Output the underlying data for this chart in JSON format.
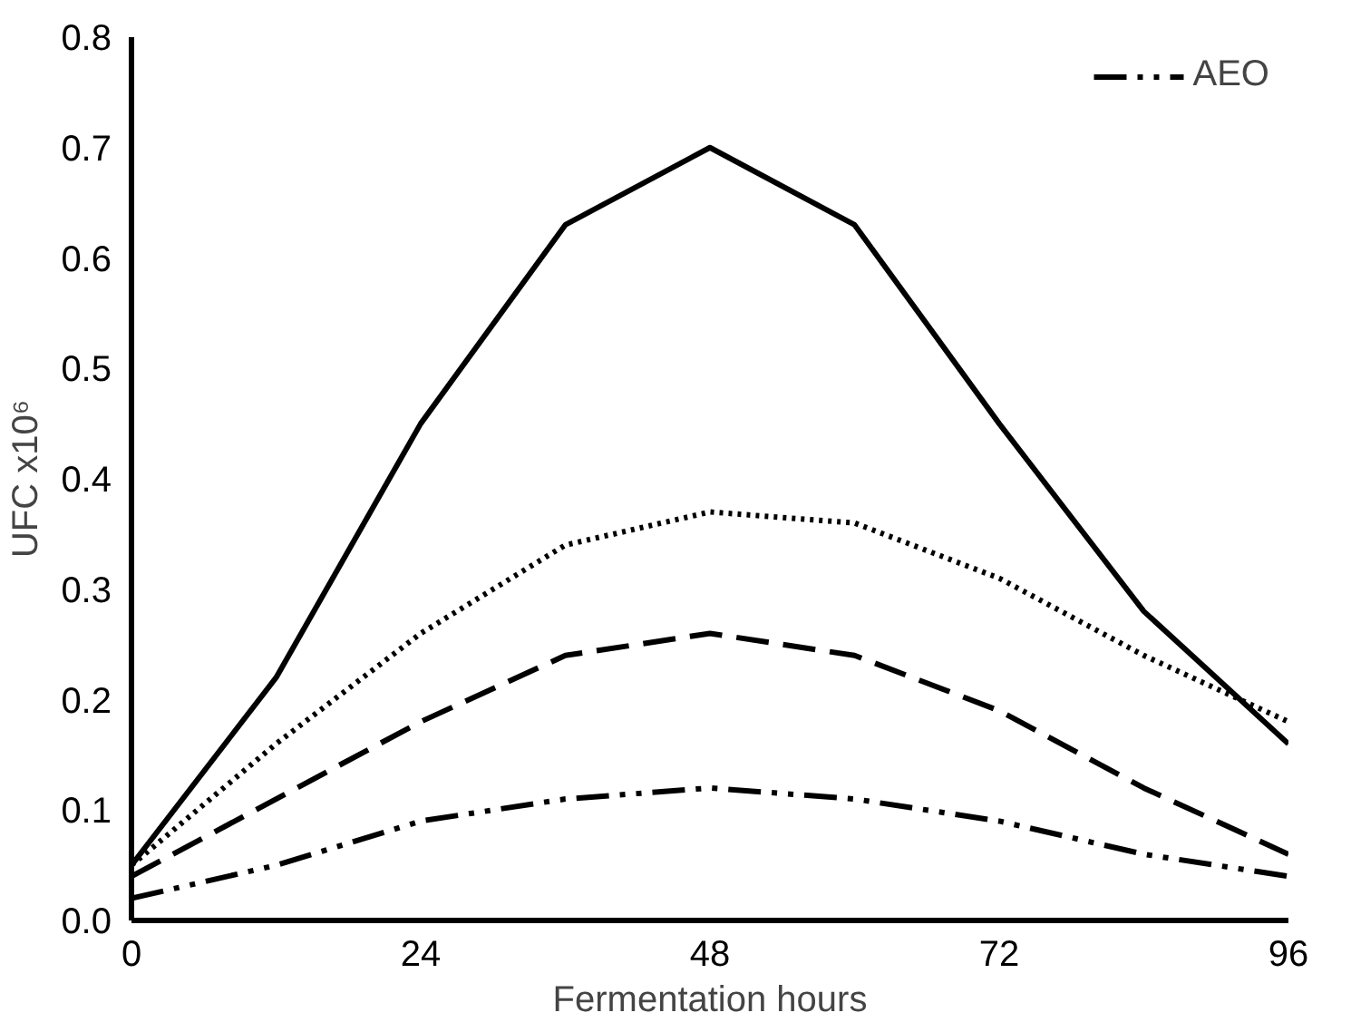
{
  "chart_data": {
    "type": "line",
    "xlabel": "Fermentation hours",
    "ylabel": "UFC x10⁶",
    "x": [
      0,
      12,
      24,
      36,
      48,
      60,
      72,
      84,
      96
    ],
    "series": [
      {
        "color": "#000000",
        "line_style": "solid",
        "values": [
          0.05,
          0.22,
          0.45,
          0.63,
          0.7,
          0.63,
          0.45,
          0.28,
          0.16
        ]
      },
      {
        "color": "#000000",
        "line_style": "dotted",
        "values": [
          0.05,
          0.16,
          0.26,
          0.34,
          0.37,
          0.36,
          0.31,
          0.24,
          0.18
        ]
      },
      {
        "color": "#000000",
        "line_style": "dashed",
        "values": [
          0.04,
          0.11,
          0.18,
          0.24,
          0.26,
          0.24,
          0.19,
          0.12,
          0.06
        ]
      },
      {
        "name": "AEO",
        "color": "#000000",
        "line_style": "dashdot",
        "values": [
          0.02,
          0.05,
          0.09,
          0.11,
          0.12,
          0.11,
          0.09,
          0.06,
          0.04
        ]
      }
    ],
    "xlim": [
      0,
      96
    ],
    "xticks": [
      0,
      24,
      48,
      72,
      96
    ],
    "ylim": [
      0,
      0.8
    ],
    "yticks": [
      {
        "value": 0,
        "label": "0.0"
      },
      0.1,
      0.2,
      0.3,
      0.4,
      0.5,
      0.6,
      0.7,
      0.8
    ],
    "grid": false,
    "legend": "top right",
    "marker": "none"
  }
}
